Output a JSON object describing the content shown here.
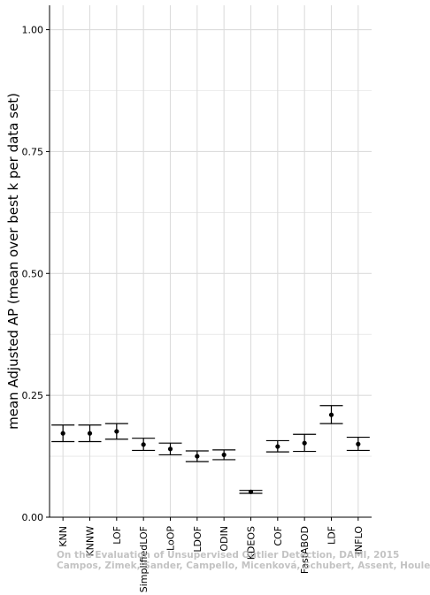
{
  "chart_data": {
    "type": "errorbar",
    "ylabel": "mean Adjusted AP (mean over best k per data set)",
    "xlabel": "",
    "ylim": [
      0,
      1.05
    ],
    "yticks": [
      "0.00",
      "0.25",
      "0.50",
      "0.75",
      "1.00"
    ],
    "grid": true,
    "legend": "none",
    "categories": [
      "KNN",
      "KNNW",
      "LOF",
      "SimplifiedLOF",
      "LoOP",
      "LDOF",
      "ODIN",
      "KDEOS",
      "COF",
      "FastABOD",
      "LDF",
      "INFLO"
    ],
    "values": [
      0.172,
      0.172,
      0.176,
      0.149,
      0.14,
      0.125,
      0.128,
      0.052,
      0.145,
      0.152,
      0.21,
      0.15
    ],
    "lower": [
      0.155,
      0.155,
      0.16,
      0.137,
      0.128,
      0.114,
      0.118,
      0.049,
      0.134,
      0.135,
      0.192,
      0.137
    ],
    "upper": [
      0.189,
      0.189,
      0.192,
      0.162,
      0.152,
      0.136,
      0.138,
      0.055,
      0.157,
      0.17,
      0.229,
      0.164
    ],
    "colors": {
      "marks": "#000000",
      "grid": "#dcdcdc",
      "axis": "#000000"
    }
  },
  "watermark": {
    "line1": "On the Evaluation of Unsupervised Outlier Detection, DAMI, 2015",
    "line2": "Campos, Zimek, Sander, Campello, Micenková, Schubert, Assent, Houle"
  }
}
